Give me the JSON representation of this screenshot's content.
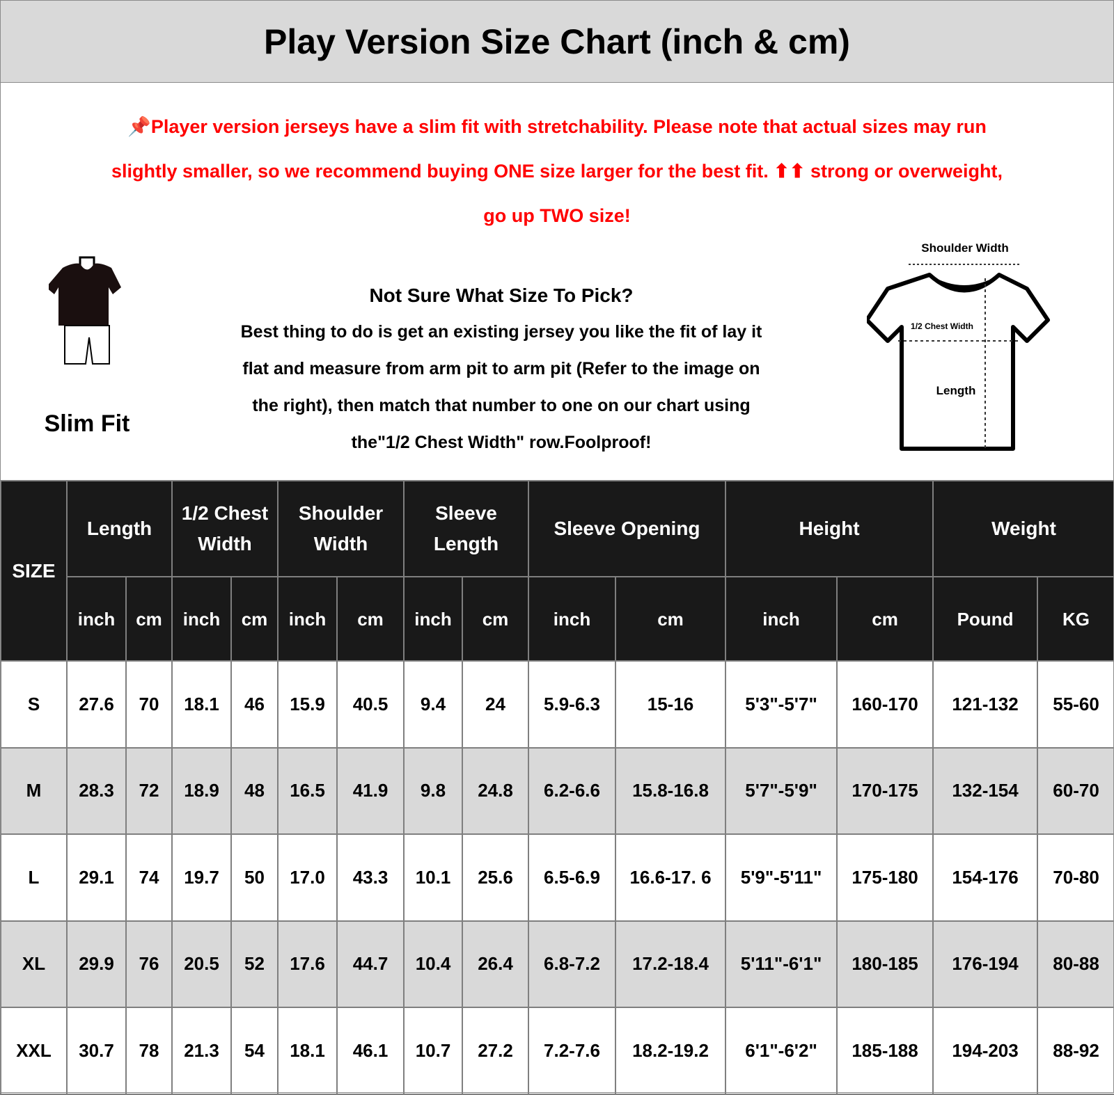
{
  "title": "Play Version Size Chart (inch & cm)",
  "note": {
    "icon": "pushpin-icon",
    "lines": [
      "Player version jerseys have a slim fit with stretchability. Please note that actual sizes may run",
      "slightly smaller, so we recommend buying ONE size larger for the best fit. ⬆⬆ strong or overweight,",
      "go up TWO size!"
    ],
    "color": "#ff0000"
  },
  "fit": {
    "label": "Slim Fit"
  },
  "advice": {
    "heading": "Not Sure What Size To Pick?",
    "lines": [
      "Best thing to do is get an existing jersey you like the fit of lay it",
      "flat and measure from arm pit to arm pit (Refer to the image on",
      "the right), then match that number to one on our chart using",
      "the\"1/2 Chest Width\" row.Foolproof!"
    ]
  },
  "diagram": {
    "shoulder": "Shoulder Width",
    "chest": "1/2 Chest Width",
    "length": "Length"
  },
  "table": {
    "size_header": "SIZE",
    "groups": [
      "Length",
      "1/2 Chest Width",
      "Shoulder Width",
      "Sleeve Length",
      "Sleeve Opening",
      "Height",
      "Weight"
    ],
    "group_lines": [
      [
        "Length"
      ],
      [
        "1/2 Chest",
        "Width"
      ],
      [
        "Shoulder",
        "Width"
      ],
      [
        "Sleeve",
        "Length"
      ],
      [
        "Sleeve Opening"
      ],
      [
        "Height"
      ],
      [
        "Weight"
      ]
    ],
    "units": [
      "inch",
      "cm",
      "inch",
      "cm",
      "inch",
      "cm",
      "inch",
      "cm",
      "inch",
      "cm",
      "inch",
      "cm",
      "Pound",
      "KG"
    ],
    "rows": [
      [
        "S",
        "27.6",
        "70",
        "18.1",
        "46",
        "15.9",
        "40.5",
        "9.4",
        "24",
        "5.9-6.3",
        "15-16",
        "5'3\"-5'7\"",
        "160-170",
        "121-132",
        "55-60"
      ],
      [
        "M",
        "28.3",
        "72",
        "18.9",
        "48",
        "16.5",
        "41.9",
        "9.8",
        "24.8",
        "6.2-6.6",
        "15.8-16.8",
        "5'7\"-5'9\"",
        "170-175",
        "132-154",
        "60-70"
      ],
      [
        "L",
        "29.1",
        "74",
        "19.7",
        "50",
        "17.0",
        "43.3",
        "10.1",
        "25.6",
        "6.5-6.9",
        "16.6-17. 6",
        "5'9\"-5'11\"",
        "175-180",
        "154-176",
        "70-80"
      ],
      [
        "XL",
        "29.9",
        "76",
        "20.5",
        "52",
        "17.6",
        "44.7",
        "10.4",
        "26.4",
        "6.8-7.2",
        "17.2-18.4",
        "5'11\"-6'1\"",
        "180-185",
        "176-194",
        "80-88"
      ],
      [
        "XXL",
        "30.7",
        "78",
        "21.3",
        "54",
        "18.1",
        "46.1",
        "10.7",
        "27.2",
        "7.2-7.6",
        "18.2-19.2",
        "6'1\"-6'2\"",
        "185-188",
        "194-203",
        "88-92"
      ]
    ]
  }
}
